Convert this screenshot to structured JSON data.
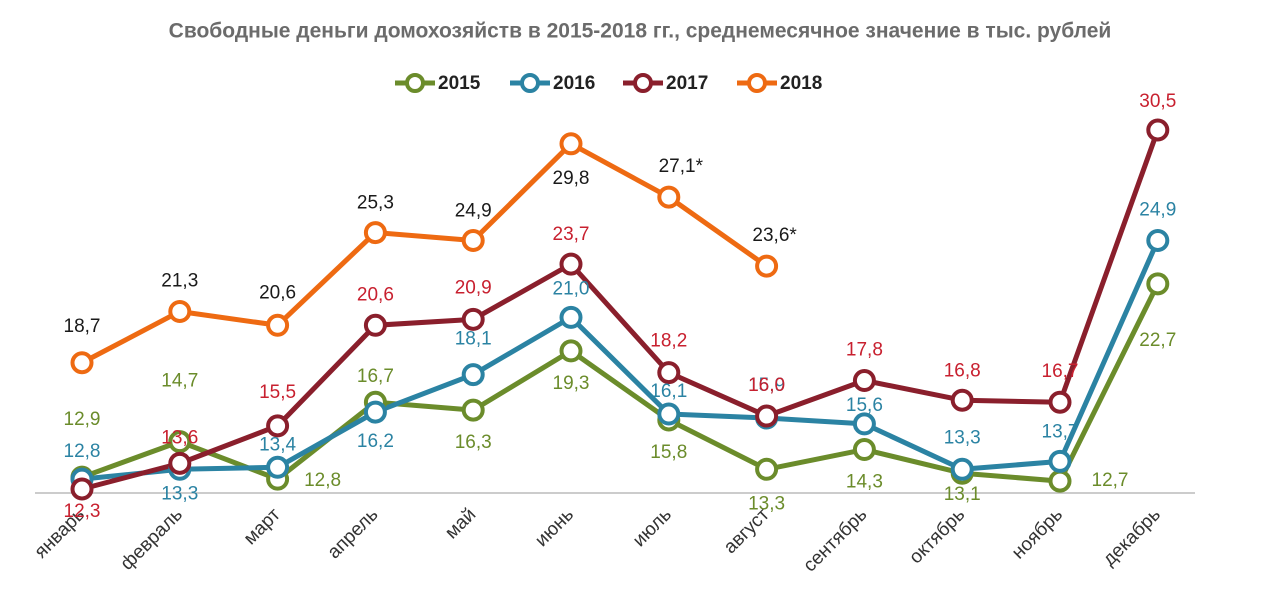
{
  "chart_data": {
    "type": "line",
    "title": "Свободные деньги домохозяйств в 2015-2018 гг., среднемесячное значение в тыс. рублей",
    "categories": [
      "январь",
      "февраль",
      "март",
      "апрель",
      "май",
      "июнь",
      "июль",
      "август",
      "сентябрь",
      "октябрь",
      "ноябрь",
      "декабрь"
    ],
    "series": [
      {
        "name": "2015",
        "color": "#6b8c2b",
        "values": [
          12.9,
          14.7,
          12.8,
          16.7,
          16.3,
          19.3,
          15.8,
          13.3,
          14.3,
          13.1,
          12.7,
          22.7
        ],
        "value_labels": [
          "12,9",
          "14,7",
          "12,8",
          "16,7",
          "16,3",
          "19,3",
          "15,8",
          "13,3",
          "14,3",
          "13,1",
          "12,7",
          "22,7"
        ]
      },
      {
        "name": "2016",
        "color": "#2b83a3",
        "values": [
          12.8,
          13.3,
          13.4,
          16.2,
          18.1,
          21.0,
          16.1,
          15.9,
          15.6,
          13.3,
          13.7,
          24.9
        ],
        "value_labels": [
          "12,8",
          "13,3",
          "13,4",
          "16,2",
          "18,1",
          "21,0",
          "16,1",
          "15,9",
          "15,6",
          "13,3",
          "13,7",
          "24,9"
        ]
      },
      {
        "name": "2017",
        "color": "#8a1f2c",
        "values": [
          12.3,
          13.6,
          15.5,
          20.6,
          20.9,
          23.7,
          18.2,
          16.0,
          17.8,
          16.8,
          16.7,
          30.5
        ],
        "value_labels": [
          "12,3",
          "13,6",
          "15,5",
          "20,6",
          "20,9",
          "23,7",
          "18,2",
          "16,0",
          "17,8",
          "16,8",
          "16,7",
          "30,5"
        ]
      },
      {
        "name": "2018",
        "color": "#ee6a12",
        "values": [
          18.7,
          21.3,
          20.6,
          25.3,
          24.9,
          29.8,
          27.1,
          23.6,
          null,
          null,
          null,
          null
        ],
        "value_labels": [
          "18,7",
          "21,3",
          "20,6",
          "25,3",
          "24,9",
          "29,8",
          "27,1*",
          "23,6*",
          null,
          null,
          null,
          null
        ]
      }
    ],
    "legend": "top"
  }
}
